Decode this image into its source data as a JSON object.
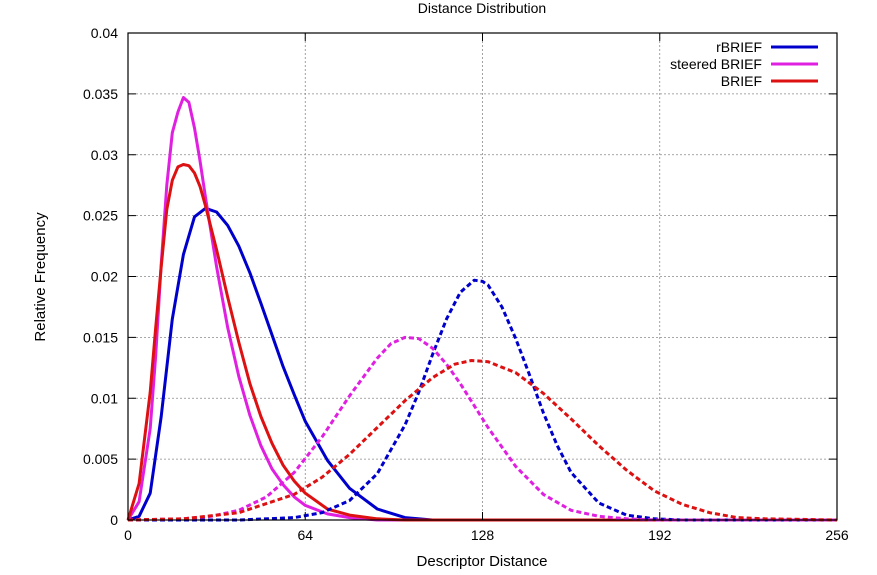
{
  "chart_data": {
    "type": "line",
    "title": "Distance Distribution",
    "xlabel": "Descriptor Distance",
    "ylabel": "Relative Frequency",
    "xlim": [
      0,
      256
    ],
    "ylim": [
      0,
      0.04
    ],
    "x_ticks": [
      0,
      64,
      128,
      192,
      256
    ],
    "y_ticks": [
      0,
      0.005,
      0.01,
      0.015,
      0.02,
      0.025,
      0.03,
      0.035,
      0.04
    ],
    "x_tick_labels": [
      "0",
      "64",
      "128",
      "192",
      "256"
    ],
    "y_tick_labels": [
      "0",
      "0.005",
      "0.01",
      "0.015",
      "0.02",
      "0.025",
      "0.03",
      "0.035",
      "0.04"
    ],
    "grid": true,
    "legend_position": "top-right",
    "legend": [
      {
        "label": "rBRIEF",
        "color": "#0000cc"
      },
      {
        "label": "steered BRIEF",
        "color": "#e020e0"
      },
      {
        "label": "BRIEF",
        "color": "#dd1111"
      }
    ],
    "series": [
      {
        "name": "rBRIEF",
        "color": "#0000cc",
        "style": "solid",
        "x": [
          0,
          4,
          8,
          12,
          16,
          20,
          24,
          28,
          32,
          36,
          40,
          44,
          48,
          52,
          56,
          60,
          64,
          72,
          80,
          90,
          100,
          110,
          256
        ],
        "y": [
          0,
          0.0003,
          0.0022,
          0.0085,
          0.0165,
          0.0218,
          0.0249,
          0.0256,
          0.0253,
          0.0242,
          0.0225,
          0.0203,
          0.0178,
          0.0152,
          0.0126,
          0.0103,
          0.0081,
          0.0049,
          0.0026,
          0.0009,
          0.0002,
          0,
          0
        ]
      },
      {
        "name": "steered BRIEF",
        "color": "#e020e0",
        "style": "solid",
        "x": [
          0,
          4,
          8,
          10,
          12,
          14,
          16,
          18,
          20,
          22,
          24,
          26,
          28,
          32,
          36,
          40,
          44,
          48,
          52,
          56,
          60,
          64,
          72,
          80,
          90,
          100,
          256
        ],
        "y": [
          0,
          0.0015,
          0.0075,
          0.0135,
          0.021,
          0.0275,
          0.0318,
          0.0335,
          0.0347,
          0.0343,
          0.0322,
          0.0295,
          0.0265,
          0.0208,
          0.0158,
          0.0118,
          0.0086,
          0.0061,
          0.0042,
          0.0029,
          0.0019,
          0.0012,
          0.0005,
          0.0002,
          0,
          0,
          0
        ]
      },
      {
        "name": "BRIEF",
        "color": "#dd1111",
        "style": "solid",
        "x": [
          0,
          4,
          8,
          10,
          12,
          14,
          16,
          18,
          20,
          22,
          24,
          26,
          28,
          32,
          36,
          40,
          44,
          48,
          52,
          56,
          60,
          64,
          72,
          80,
          90,
          100,
          256
        ],
        "y": [
          0,
          0.003,
          0.0105,
          0.0158,
          0.0208,
          0.0255,
          0.0279,
          0.029,
          0.0292,
          0.0291,
          0.0285,
          0.0274,
          0.0258,
          0.0222,
          0.0183,
          0.0146,
          0.0112,
          0.0085,
          0.0063,
          0.0045,
          0.0032,
          0.0022,
          0.0009,
          0.0004,
          0.0001,
          0,
          0
        ]
      },
      {
        "name": "rBRIEF",
        "color": "#0000cc",
        "style": "dashed",
        "x": [
          0,
          40,
          60,
          70,
          80,
          90,
          100,
          105,
          110,
          115,
          120,
          125,
          128,
          130,
          135,
          140,
          145,
          150,
          155,
          160,
          170,
          180,
          190,
          200,
          256
        ],
        "y": [
          0,
          0,
          0.0002,
          0.0006,
          0.0016,
          0.0038,
          0.0078,
          0.0105,
          0.0136,
          0.0165,
          0.0187,
          0.0197,
          0.0196,
          0.0193,
          0.0175,
          0.0149,
          0.0119,
          0.0088,
          0.0061,
          0.0039,
          0.0014,
          0.0004,
          0.0001,
          0,
          0
        ]
      },
      {
        "name": "steered BRIEF",
        "color": "#e020e0",
        "style": "dashed",
        "x": [
          0,
          20,
          30,
          40,
          50,
          60,
          70,
          80,
          90,
          95,
          100,
          105,
          110,
          115,
          120,
          130,
          140,
          150,
          160,
          170,
          180,
          190,
          256
        ],
        "y": [
          0,
          0.0001,
          0.0003,
          0.0008,
          0.0019,
          0.0039,
          0.0068,
          0.0102,
          0.0133,
          0.0145,
          0.015,
          0.0149,
          0.0141,
          0.0128,
          0.0112,
          0.0076,
          0.0044,
          0.0021,
          0.0008,
          0.0003,
          0.0001,
          0,
          0
        ]
      },
      {
        "name": "BRIEF",
        "color": "#dd1111",
        "style": "dashed",
        "x": [
          0,
          20,
          40,
          60,
          70,
          80,
          90,
          100,
          110,
          118,
          124,
          130,
          140,
          150,
          160,
          170,
          180,
          190,
          200,
          210,
          220,
          230,
          256
        ],
        "y": [
          0,
          0.0001,
          0.0006,
          0.0021,
          0.0035,
          0.0054,
          0.0076,
          0.0098,
          0.0117,
          0.0128,
          0.0131,
          0.013,
          0.0121,
          0.0104,
          0.0083,
          0.0061,
          0.0041,
          0.0024,
          0.0013,
          0.0006,
          0.0002,
          0.0001,
          0
        ]
      }
    ]
  }
}
